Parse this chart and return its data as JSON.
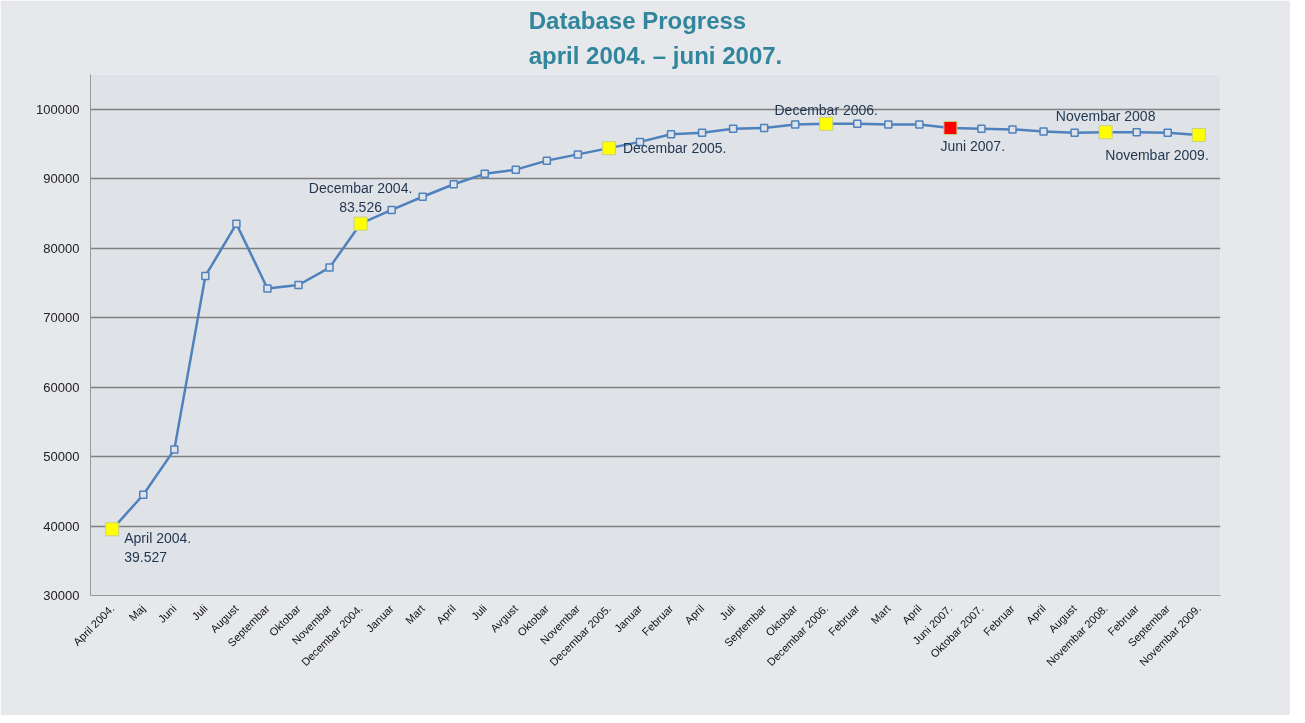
{
  "chart_data": {
    "type": "line",
    "title": "Database Progress\napril 2004. – juni 2007.",
    "categories": [
      "April 2004.",
      "Maj",
      "Juni",
      "Juli",
      "August",
      "Septembar",
      "Oktobar",
      "Novembar",
      "Decembar 2004.",
      "Januar",
      "Mart",
      "April",
      "Juli",
      "Avgust",
      "Oktobar",
      "Novembar",
      "Decembar 2005.",
      "Januar",
      "Februar",
      "April",
      "Juli",
      "Septembar",
      "Oktobar",
      "Decembar 2006.",
      "Februar",
      "Mart",
      "April",
      "Juni 2007.",
      "Oktobar 2007.",
      "Februar",
      "April",
      "August",
      "Novembar 2008.",
      "Februar",
      "Septembar",
      "Novembar 2009."
    ],
    "series": [
      {
        "color": "#4f81bd",
        "marker": "square",
        "values": [
          39527,
          44500,
          51000,
          76000,
          83500,
          74200,
          74700,
          77200,
          83526,
          85500,
          87400,
          89200,
          90700,
          91300,
          92600,
          93500,
          94400,
          95300,
          96400,
          96600,
          97200,
          97300,
          97800,
          97900,
          97900,
          97800,
          97800,
          97300,
          97200,
          97100,
          96800,
          96600,
          96700,
          96700,
          96600,
          96300
        ],
        "colors": [
          "#ffff00",
          "#4f81bd",
          "#4f81bd",
          "#4f81bd",
          "#4f81bd",
          "#4f81bd",
          "#4f81bd",
          "#4f81bd",
          "#ffff00",
          "#4f81bd",
          "#4f81bd",
          "#4f81bd",
          "#4f81bd",
          "#4f81bd",
          "#4f81bd",
          "#4f81bd",
          "#ffff00",
          "#4f81bd",
          "#4f81bd",
          "#4f81bd",
          "#4f81bd",
          "#4f81bd",
          "#4f81bd",
          "#ffff00",
          "#4f81bd",
          "#4f81bd",
          "#4f81bd",
          "#ff0000",
          "#4f81bd",
          "#4f81bd",
          "#4f81bd",
          "#4f81bd",
          "#ffff00",
          "#4f81bd",
          "#4f81bd",
          "#ffff00"
        ]
      }
    ],
    "ylim": [
      30000,
      105000
    ],
    "yticks": [
      30000,
      40000,
      50000,
      60000,
      70000,
      80000,
      90000,
      100000
    ],
    "grid": "y",
    "line_style": "solid",
    "annotations": [
      {
        "text": "April 2004.\n39.527",
        "x": "April 2004.",
        "y": 39527
      },
      {
        "text": "Decembar 2004.\n83.526",
        "x": "Decembar 2004.",
        "y": 83526
      },
      {
        "text": "Decembar 2005.",
        "x": "Decembar 2005.",
        "y": 94400
      },
      {
        "text": "Decembar 2006.",
        "x": "Decembar 2006.",
        "y": 97900
      },
      {
        "text": "Juni 2007.",
        "x": "Juni 2007.",
        "y": 97300
      },
      {
        "text": "Novembar 2008",
        "x": "Novembar 2008.",
        "y": 96700
      },
      {
        "text": "Novembar 2009.",
        "x": "Novembar 2009.",
        "y": 96300
      }
    ]
  }
}
